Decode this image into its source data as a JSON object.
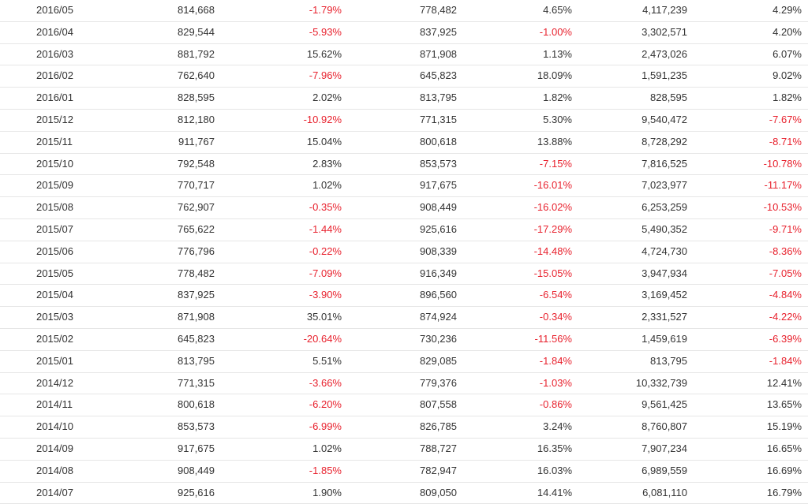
{
  "rows": [
    [
      "2016/05",
      "814,668",
      "-1.79%",
      "778,482",
      "4.65%",
      "4,117,239",
      "4.29%"
    ],
    [
      "2016/04",
      "829,544",
      "-5.93%",
      "837,925",
      "-1.00%",
      "3,302,571",
      "4.20%"
    ],
    [
      "2016/03",
      "881,792",
      "15.62%",
      "871,908",
      "1.13%",
      "2,473,026",
      "6.07%"
    ],
    [
      "2016/02",
      "762,640",
      "-7.96%",
      "645,823",
      "18.09%",
      "1,591,235",
      "9.02%"
    ],
    [
      "2016/01",
      "828,595",
      "2.02%",
      "813,795",
      "1.82%",
      "828,595",
      "1.82%"
    ],
    [
      "2015/12",
      "812,180",
      "-10.92%",
      "771,315",
      "5.30%",
      "9,540,472",
      "-7.67%"
    ],
    [
      "2015/11",
      "911,767",
      "15.04%",
      "800,618",
      "13.88%",
      "8,728,292",
      "-8.71%"
    ],
    [
      "2015/10",
      "792,548",
      "2.83%",
      "853,573",
      "-7.15%",
      "7,816,525",
      "-10.78%"
    ],
    [
      "2015/09",
      "770,717",
      "1.02%",
      "917,675",
      "-16.01%",
      "7,023,977",
      "-11.17%"
    ],
    [
      "2015/08",
      "762,907",
      "-0.35%",
      "908,449",
      "-16.02%",
      "6,253,259",
      "-10.53%"
    ],
    [
      "2015/07",
      "765,622",
      "-1.44%",
      "925,616",
      "-17.29%",
      "5,490,352",
      "-9.71%"
    ],
    [
      "2015/06",
      "776,796",
      "-0.22%",
      "908,339",
      "-14.48%",
      "4,724,730",
      "-8.36%"
    ],
    [
      "2015/05",
      "778,482",
      "-7.09%",
      "916,349",
      "-15.05%",
      "3,947,934",
      "-7.05%"
    ],
    [
      "2015/04",
      "837,925",
      "-3.90%",
      "896,560",
      "-6.54%",
      "3,169,452",
      "-4.84%"
    ],
    [
      "2015/03",
      "871,908",
      "35.01%",
      "874,924",
      "-0.34%",
      "2,331,527",
      "-4.22%"
    ],
    [
      "2015/02",
      "645,823",
      "-20.64%",
      "730,236",
      "-11.56%",
      "1,459,619",
      "-6.39%"
    ],
    [
      "2015/01",
      "813,795",
      "5.51%",
      "829,085",
      "-1.84%",
      "813,795",
      "-1.84%"
    ],
    [
      "2014/12",
      "771,315",
      "-3.66%",
      "779,376",
      "-1.03%",
      "10,332,739",
      "12.41%"
    ],
    [
      "2014/11",
      "800,618",
      "-6.20%",
      "807,558",
      "-0.86%",
      "9,561,425",
      "13.65%"
    ],
    [
      "2014/10",
      "853,573",
      "-6.99%",
      "826,785",
      "3.24%",
      "8,760,807",
      "15.19%"
    ],
    [
      "2014/09",
      "917,675",
      "1.02%",
      "788,727",
      "16.35%",
      "7,907,234",
      "16.65%"
    ],
    [
      "2014/08",
      "908,449",
      "-1.85%",
      "782,947",
      "16.03%",
      "6,989,559",
      "16.69%"
    ],
    [
      "2014/07",
      "925,616",
      "1.90%",
      "809,050",
      "14.41%",
      "6,081,110",
      "16.79%"
    ]
  ],
  "colors": {
    "negative": "#e8222e",
    "text": "#333333",
    "row_border": "#e6e6e6"
  }
}
